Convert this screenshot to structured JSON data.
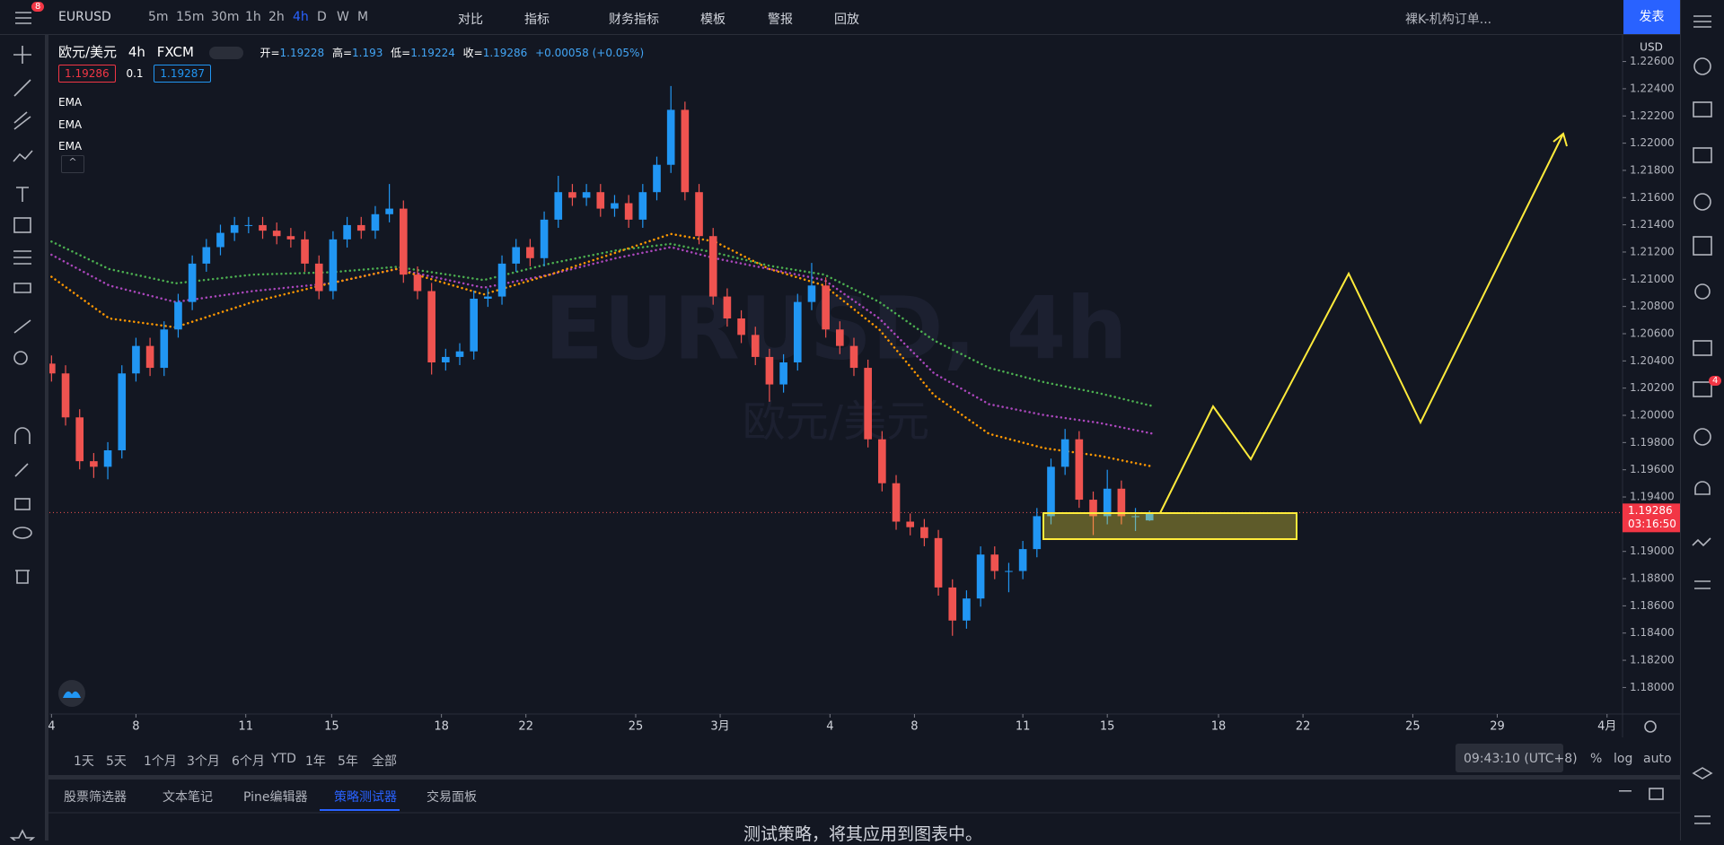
{
  "toolbar": {
    "alerts_badge": "8",
    "symbol": "EURUSD",
    "intervals": [
      "5m",
      "15m",
      "30m",
      "1h",
      "2h",
      "4h",
      "D",
      "W",
      "M"
    ],
    "active_interval": "4h",
    "compare": "对比",
    "indicators": "指标",
    "financials": "财务指标",
    "templates": "模板",
    "alert": "警报",
    "replay": "回放",
    "layout_name": "裸K-机构订单...",
    "publish": "发表"
  },
  "legend": {
    "title": "欧元/美元",
    "interval": "4h",
    "source": "FXCM",
    "open_label": "开=",
    "high_label": "高=",
    "low_label": "低=",
    "close_label": "收=",
    "change": "+0.00058 (+0.05%)",
    "bid": "1.19286",
    "spread": "0.1",
    "ask": "1.19287"
  },
  "chart_data": {
    "type": "candlestick",
    "watermark_title": "EURUSD, 4h",
    "watermark_subtitle": "欧元/美元",
    "currency": "USD",
    "countdown": "03:16:50",
    "up_color": "#2196f3",
    "down_color": "#ef5350",
    "grid": false,
    "xlim": [
      -0.15,
      111.6
    ],
    "ylim": [
      1.17805,
      1.22795
    ],
    "xticks": [
      {
        "value": 0,
        "label": "4"
      },
      {
        "value": 6,
        "label": "8"
      },
      {
        "value": 13.8,
        "label": "11"
      },
      {
        "value": 19.9,
        "label": "15"
      },
      {
        "value": 27.7,
        "label": "18"
      },
      {
        "value": 33.7,
        "label": "22"
      },
      {
        "value": 41.5,
        "label": "25"
      },
      {
        "value": 47.5,
        "label": "3月"
      },
      {
        "value": 55.3,
        "label": "4"
      },
      {
        "value": 61.3,
        "label": "8"
      },
      {
        "value": 69,
        "label": "11"
      },
      {
        "value": 75,
        "label": "15"
      },
      {
        "value": 82.9,
        "label": "18"
      },
      {
        "value": 88.9,
        "label": "22"
      },
      {
        "value": 96.7,
        "label": "25"
      },
      {
        "value": 102.7,
        "label": "29"
      },
      {
        "value": 110.5,
        "label": "4月"
      }
    ],
    "yticks": [
      {
        "value": 1.226,
        "label": "1.22600"
      },
      {
        "value": 1.224,
        "label": "1.22400"
      },
      {
        "value": 1.222,
        "label": "1.22200"
      },
      {
        "value": 1.22,
        "label": "1.22000"
      },
      {
        "value": 1.218,
        "label": "1.21800"
      },
      {
        "value": 1.216,
        "label": "1.21600"
      },
      {
        "value": 1.214,
        "label": "1.21400"
      },
      {
        "value": 1.212,
        "label": "1.21200"
      },
      {
        "value": 1.21,
        "label": "1.21000"
      },
      {
        "value": 1.208,
        "label": "1.20800"
      },
      {
        "value": 1.206,
        "label": "1.20600"
      },
      {
        "value": 1.204,
        "label": "1.20400"
      },
      {
        "value": 1.202,
        "label": "1.20200"
      },
      {
        "value": 1.2,
        "label": "1.20000"
      },
      {
        "value": 1.198,
        "label": "1.19800"
      },
      {
        "value": 1.196,
        "label": "1.19600"
      },
      {
        "value": 1.194,
        "label": "1.19400"
      },
      {
        "value": 1.192,
        "label": "1.19200"
      },
      {
        "value": 1.19,
        "label": "1.19000"
      },
      {
        "value": 1.188,
        "label": "1.18800"
      },
      {
        "value": 1.186,
        "label": "1.18600"
      },
      {
        "value": 1.184,
        "label": "1.18400"
      },
      {
        "value": 1.182,
        "label": "1.18200"
      },
      {
        "value": 1.18,
        "label": "1.18000"
      }
    ],
    "ohlc": [
      [
        1.2038,
        1.2044,
        1.20248,
        1.20308
      ],
      [
        1.20308,
        1.20368,
        1.19925,
        1.19985
      ],
      [
        1.19985,
        1.20045,
        1.19603,
        1.19663
      ],
      [
        1.19663,
        1.19723,
        1.1954,
        1.19622
      ],
      [
        1.19622,
        1.19803,
        1.1953,
        1.19743
      ],
      [
        1.19743,
        1.20368,
        1.19683,
        1.20308
      ],
      [
        1.20308,
        1.2057,
        1.20248,
        1.2051
      ],
      [
        1.2051,
        1.2057,
        1.20289,
        1.20349
      ],
      [
        1.20349,
        1.20691,
        1.20289,
        1.20631
      ],
      [
        1.20631,
        1.20893,
        1.20571,
        1.20833
      ],
      [
        1.20833,
        1.21175,
        1.20773,
        1.21115
      ],
      [
        1.21115,
        1.21296,
        1.21055,
        1.21236
      ],
      [
        1.21236,
        1.21401,
        1.21176,
        1.21341
      ],
      [
        1.21341,
        1.21458,
        1.21281,
        1.21398
      ],
      [
        1.21398,
        1.21458,
        1.21338,
        1.21398
      ],
      [
        1.21398,
        1.21458,
        1.21297,
        1.21357
      ],
      [
        1.21357,
        1.21417,
        1.21257,
        1.21317
      ],
      [
        1.21317,
        1.21377,
        1.21233,
        1.21293
      ],
      [
        1.21293,
        1.21353,
        1.21055,
        1.21115
      ],
      [
        1.21115,
        1.21175,
        1.20853,
        1.20913
      ],
      [
        1.20913,
        1.21353,
        1.20853,
        1.21293
      ],
      [
        1.21293,
        1.21458,
        1.21233,
        1.21398
      ],
      [
        1.21398,
        1.21458,
        1.21297,
        1.21357
      ],
      [
        1.21357,
        1.21538,
        1.21297,
        1.21478
      ],
      [
        1.21478,
        1.217,
        1.21418,
        1.21519
      ],
      [
        1.21519,
        1.21579,
        1.20974,
        1.21034
      ],
      [
        1.21034,
        1.21094,
        1.20853,
        1.20913
      ],
      [
        1.20913,
        1.20973,
        1.203,
        1.20389
      ],
      [
        1.20389,
        1.20489,
        1.20329,
        1.20429
      ],
      [
        1.20429,
        1.2053,
        1.20369,
        1.2047
      ],
      [
        1.2047,
        1.20917,
        1.2041,
        1.20857
      ],
      [
        1.20857,
        1.20933,
        1.20797,
        1.20873
      ],
      [
        1.20873,
        1.21175,
        1.20813,
        1.21115
      ],
      [
        1.21115,
        1.21296,
        1.21055,
        1.21236
      ],
      [
        1.21236,
        1.21296,
        1.21095,
        1.21155
      ],
      [
        1.21155,
        1.21498,
        1.21095,
        1.21438
      ],
      [
        1.21438,
        1.2176,
        1.21378,
        1.2164
      ],
      [
        1.2164,
        1.217,
        1.21539,
        1.21599
      ],
      [
        1.21599,
        1.217,
        1.21539,
        1.2164
      ],
      [
        1.2164,
        1.217,
        1.21459,
        1.21519
      ],
      [
        1.21519,
        1.21619,
        1.21459,
        1.21559
      ],
      [
        1.21559,
        1.21619,
        1.21378,
        1.21438
      ],
      [
        1.21438,
        1.217,
        1.21378,
        1.2164
      ],
      [
        1.2164,
        1.21901,
        1.2158,
        1.21841
      ],
      [
        1.21841,
        1.2242,
        1.21781,
        1.22245
      ],
      [
        1.22245,
        1.22305,
        1.2158,
        1.2164
      ],
      [
        1.2164,
        1.217,
        1.21257,
        1.21317
      ],
      [
        1.21317,
        1.21377,
        1.20813,
        1.20873
      ],
      [
        1.20873,
        1.20933,
        1.20652,
        1.20712
      ],
      [
        1.20712,
        1.20772,
        1.20531,
        1.20591
      ],
      [
        1.20591,
        1.20651,
        1.20369,
        1.20429
      ],
      [
        1.20429,
        1.20489,
        1.201,
        1.20227
      ],
      [
        1.20227,
        1.20449,
        1.20167,
        1.20389
      ],
      [
        1.20389,
        1.20893,
        1.20329,
        1.20833
      ],
      [
        1.20833,
        1.2112,
        1.20773,
        1.20954
      ],
      [
        1.20954,
        1.21014,
        1.20571,
        1.20631
      ],
      [
        1.20631,
        1.20691,
        1.2045,
        1.2051
      ],
      [
        1.2051,
        1.2057,
        1.20289,
        1.20349
      ],
      [
        1.20349,
        1.20409,
        1.19764,
        1.19824
      ],
      [
        1.19824,
        1.19884,
        1.19441,
        1.19501
      ],
      [
        1.19501,
        1.19561,
        1.19159,
        1.19219
      ],
      [
        1.19219,
        1.19279,
        1.19118,
        1.19178
      ],
      [
        1.19178,
        1.19238,
        1.19038,
        1.19098
      ],
      [
        1.19098,
        1.19158,
        1.18675,
        1.18735
      ],
      [
        1.18735,
        1.18795,
        1.1838,
        1.18492
      ],
      [
        1.18492,
        1.18714,
        1.18432,
        1.18654
      ],
      [
        1.18654,
        1.19037,
        1.18594,
        1.18977
      ],
      [
        1.18977,
        1.19037,
        1.18796,
        1.18856
      ],
      [
        1.18856,
        1.18916,
        1.187,
        1.18856
      ],
      [
        1.18856,
        1.19077,
        1.18796,
        1.19017
      ],
      [
        1.19017,
        1.19319,
        1.18957,
        1.19259
      ],
      [
        1.19259,
        1.19682,
        1.19199,
        1.19622
      ],
      [
        1.19622,
        1.199,
        1.19562,
        1.19824
      ],
      [
        1.19824,
        1.19884,
        1.1932,
        1.1938
      ],
      [
        1.1938,
        1.1944,
        1.1912,
        1.19259
      ],
      [
        1.19259,
        1.196,
        1.19199,
        1.19461
      ],
      [
        1.19461,
        1.19521,
        1.19199,
        1.19259
      ],
      [
        1.19259,
        1.19319,
        1.1915,
        1.19259
      ],
      [
        1.19228,
        1.193,
        1.19224,
        1.19286
      ]
    ],
    "ema": {
      "x": [
        0,
        4.1,
        8.8,
        14.3,
        19.8,
        24.5,
        30.7,
        35.4,
        40.1,
        44,
        47.1,
        51,
        54.9,
        58.8,
        62.7,
        66.6,
        70.5,
        74.4,
        78.3
      ],
      "series": [
        {
          "name": "EMA",
          "color": "#4caf50",
          "values": [
            1.21277,
            1.21075,
            1.2097,
            1.21034,
            1.21051,
            1.21091,
            1.20994,
            1.21115,
            1.21212,
            1.2126,
            1.21196,
            1.21099,
            1.21034,
            1.20833,
            1.2055,
            1.20349,
            1.20244,
            1.20163,
            1.20066
          ]
        },
        {
          "name": "EMA",
          "color": "#ab47bc",
          "values": [
            1.2118,
            1.20954,
            1.20833,
            1.20913,
            1.2097,
            1.21075,
            1.20938,
            1.21034,
            1.21155,
            1.21236,
            1.21155,
            1.21075,
            1.20994,
            1.20712,
            1.20308,
            1.20082,
            1.20002,
            1.19945,
            1.19864
          ]
        },
        {
          "name": "EMA",
          "color": "#ff9800",
          "values": [
            1.21018,
            1.20712,
            1.20647,
            1.20833,
            1.2097,
            1.21075,
            1.20889,
            1.21034,
            1.21196,
            1.21333,
            1.21277,
            1.21075,
            1.20954,
            1.20631,
            1.20147,
            1.19864,
            1.19759,
            1.19703,
            1.19622
          ]
        }
      ]
    }
  },
  "range_bar": {
    "ranges": [
      "1天",
      "5天",
      "1个月",
      "3个月",
      "6个月",
      "YTD",
      "1年",
      "5年",
      "全部"
    ],
    "clock": "09:43:10 (UTC+8)",
    "percent": "%",
    "log": "log",
    "auto": "auto"
  },
  "panel": {
    "tabs": [
      "股票筛选器",
      "文本笔记",
      "Pine编辑器",
      "策略测试器",
      "交易面板"
    ],
    "active_tab": "策略测试器",
    "message": "测试策略，将其应用到图表中。"
  },
  "sidebar": {
    "chat_badge": "4"
  }
}
